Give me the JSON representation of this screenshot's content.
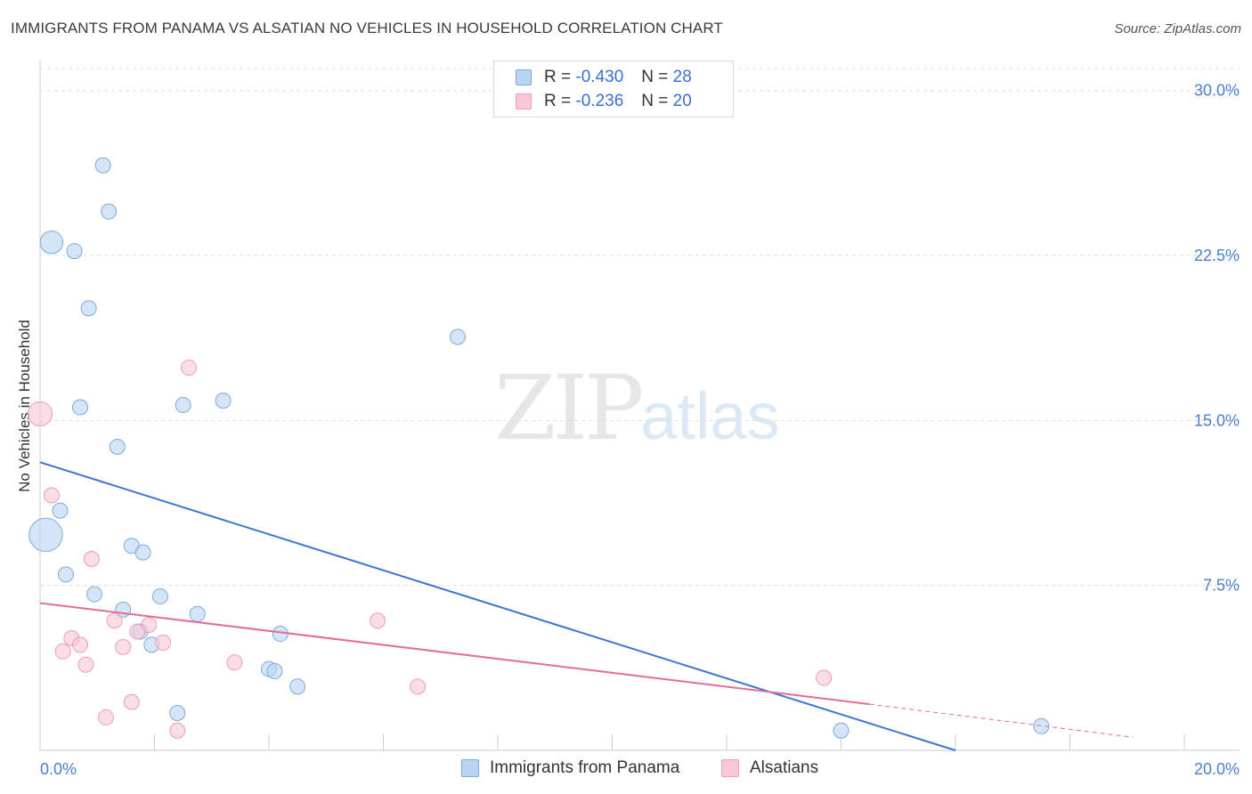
{
  "title": "IMMIGRANTS FROM PANAMA VS ALSATIAN NO VEHICLES IN HOUSEHOLD CORRELATION CHART",
  "source": "Source: ZipAtlas.com",
  "watermark": {
    "zip": "ZIP",
    "atlas": "atlas"
  },
  "legend": {
    "rows": [
      {
        "r_label": "R = ",
        "r_value": "-0.430",
        "n_label": "N = ",
        "n_value": "28"
      },
      {
        "r_label": "R = ",
        "r_value": "-0.236",
        "n_label": "N = ",
        "n_value": "20"
      }
    ]
  },
  "colors": {
    "blue_fill": "#b9d3f3",
    "blue_stroke": "#7fa8e0",
    "blue_line": "#3a76d2",
    "pink_fill": "#f8c7d5",
    "pink_stroke": "#ee9db6",
    "pink_line": "#e46d98",
    "grid": "#dddddd",
    "axis_text": "#4a7fce"
  },
  "chart_data": {
    "type": "scatter",
    "title": "IMMIGRANTS FROM PANAMA VS ALSATIAN NO VEHICLES IN HOUSEHOLD CORRELATION CHART",
    "xlabel": "",
    "ylabel": "No Vehicles in Household",
    "xlim": [
      0,
      20
    ],
    "ylim": [
      0,
      31
    ],
    "x_tick_labels": [
      "0.0%",
      "20.0%"
    ],
    "y_ticks": [
      7.5,
      15.0,
      22.5,
      30.0
    ],
    "y_tick_labels": [
      "7.5%",
      "15.0%",
      "22.5%",
      "30.0%"
    ],
    "grid": true,
    "legend_position": "top-center",
    "series": [
      {
        "name": "Immigrants from Panama",
        "color": "#b9d3f3",
        "points": [
          {
            "x": 1.1,
            "y": 26.6,
            "s": 1
          },
          {
            "x": 1.2,
            "y": 24.5,
            "s": 1
          },
          {
            "x": 0.2,
            "y": 23.1,
            "s": 1.5
          },
          {
            "x": 0.6,
            "y": 22.7,
            "s": 1
          },
          {
            "x": 0.85,
            "y": 20.1,
            "s": 1
          },
          {
            "x": 7.3,
            "y": 18.8,
            "s": 1
          },
          {
            "x": 3.2,
            "y": 15.9,
            "s": 1
          },
          {
            "x": 0.7,
            "y": 15.6,
            "s": 1
          },
          {
            "x": 2.5,
            "y": 15.7,
            "s": 1
          },
          {
            "x": 1.35,
            "y": 13.8,
            "s": 1
          },
          {
            "x": 0.35,
            "y": 10.9,
            "s": 1
          },
          {
            "x": 0.1,
            "y": 9.8,
            "s": 2.2
          },
          {
            "x": 1.6,
            "y": 9.3,
            "s": 1
          },
          {
            "x": 1.8,
            "y": 9.0,
            "s": 1
          },
          {
            "x": 0.45,
            "y": 8.0,
            "s": 1
          },
          {
            "x": 0.95,
            "y": 7.1,
            "s": 1
          },
          {
            "x": 2.1,
            "y": 7.0,
            "s": 1
          },
          {
            "x": 1.45,
            "y": 6.4,
            "s": 1
          },
          {
            "x": 2.75,
            "y": 6.2,
            "s": 1
          },
          {
            "x": 1.75,
            "y": 5.4,
            "s": 1
          },
          {
            "x": 4.2,
            "y": 5.3,
            "s": 1
          },
          {
            "x": 1.95,
            "y": 4.8,
            "s": 1
          },
          {
            "x": 4.0,
            "y": 3.7,
            "s": 1
          },
          {
            "x": 4.1,
            "y": 3.6,
            "s": 1
          },
          {
            "x": 4.5,
            "y": 2.9,
            "s": 1
          },
          {
            "x": 2.4,
            "y": 1.7,
            "s": 1
          },
          {
            "x": 14.0,
            "y": 0.9,
            "s": 1
          },
          {
            "x": 17.5,
            "y": 1.1,
            "s": 1
          }
        ],
        "trend": {
          "x0": 0,
          "y0": 13.1,
          "x1": 16.0,
          "y1": 0.0
        }
      },
      {
        "name": "Alsatians",
        "color": "#f8c7d5",
        "points": [
          {
            "x": 0.0,
            "y": 15.3,
            "s": 1.6
          },
          {
            "x": 2.6,
            "y": 17.4,
            "s": 1
          },
          {
            "x": 0.2,
            "y": 11.6,
            "s": 1
          },
          {
            "x": 0.9,
            "y": 8.7,
            "s": 1
          },
          {
            "x": 1.3,
            "y": 5.9,
            "s": 1
          },
          {
            "x": 1.9,
            "y": 5.7,
            "s": 1
          },
          {
            "x": 5.9,
            "y": 5.9,
            "s": 1
          },
          {
            "x": 1.7,
            "y": 5.4,
            "s": 1
          },
          {
            "x": 0.55,
            "y": 5.1,
            "s": 1
          },
          {
            "x": 0.7,
            "y": 4.8,
            "s": 1
          },
          {
            "x": 2.15,
            "y": 4.9,
            "s": 1
          },
          {
            "x": 1.45,
            "y": 4.7,
            "s": 1
          },
          {
            "x": 0.4,
            "y": 4.5,
            "s": 1
          },
          {
            "x": 0.8,
            "y": 3.9,
            "s": 1
          },
          {
            "x": 3.4,
            "y": 4.0,
            "s": 1
          },
          {
            "x": 6.6,
            "y": 2.9,
            "s": 1
          },
          {
            "x": 13.7,
            "y": 3.3,
            "s": 1
          },
          {
            "x": 1.6,
            "y": 2.2,
            "s": 1
          },
          {
            "x": 1.15,
            "y": 1.5,
            "s": 1
          },
          {
            "x": 2.4,
            "y": 0.9,
            "s": 1
          }
        ],
        "trend": {
          "x0": 0,
          "y0": 6.7,
          "x1": 14.5,
          "y1": 2.1
        },
        "trend_extension": {
          "x0": 14.5,
          "y0": 2.1,
          "x1": 19.1,
          "y1": 0.6
        }
      }
    ]
  }
}
